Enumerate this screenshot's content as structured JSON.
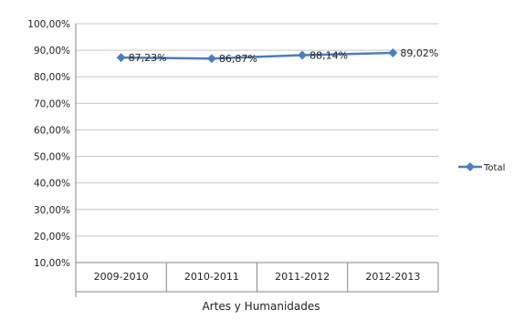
{
  "chart_data": {
    "type": "line",
    "categories": [
      "2009-2010",
      "2010-2011",
      "2011-2012",
      "2012-2013"
    ],
    "group_label": "Artes y Humanidades",
    "series": [
      {
        "name": "Total",
        "values": [
          87.23,
          86.87,
          88.14,
          89.02
        ],
        "labels": [
          "87,23%",
          "86,87%",
          "88,14%",
          "89,02%"
        ],
        "color": "#4a7ebb"
      }
    ],
    "y_ticks": [
      "100,00%",
      "90,00%",
      "80,00%",
      "70,00%",
      "60,00%",
      "50,00%",
      "40,00%",
      "30,00%",
      "20,00%",
      "10,00%"
    ],
    "ylim": [
      10,
      100
    ],
    "grid": true,
    "legend_position": "right"
  }
}
